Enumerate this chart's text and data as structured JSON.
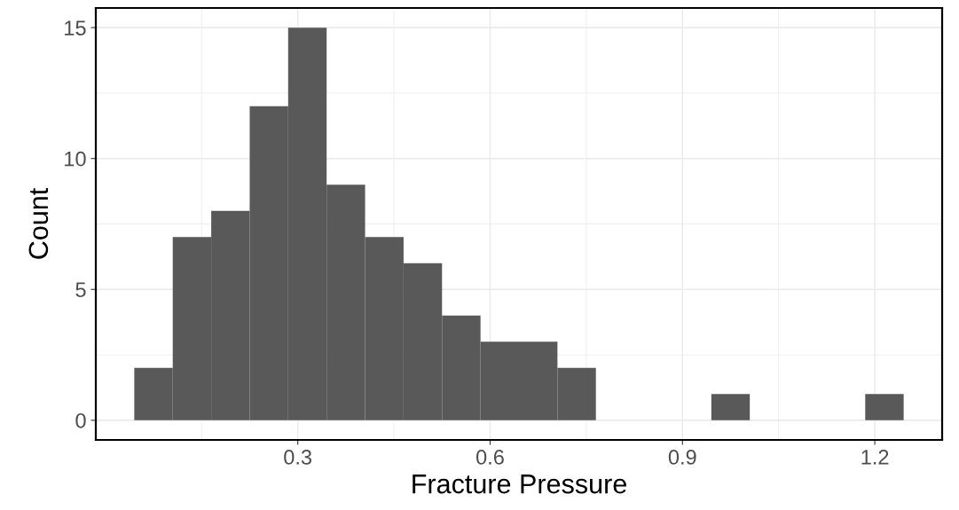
{
  "chart_data": {
    "type": "histogram",
    "xlabel": "Fracture Pressure",
    "ylabel": "Count",
    "bins": [
      0.045,
      0.105,
      0.165,
      0.225,
      0.285,
      0.345,
      0.405,
      0.465,
      0.525,
      0.585,
      0.645,
      0.705,
      0.765,
      0.825,
      0.885,
      0.945,
      1.005,
      1.065,
      1.125,
      1.185,
      1.245
    ],
    "values": [
      2,
      7,
      8,
      12,
      15,
      9,
      7,
      6,
      4,
      3,
      3,
      2,
      0,
      0,
      0,
      1,
      0,
      0,
      0,
      1
    ],
    "color": "#595959",
    "xlim": [
      -0.015,
      1.305
    ],
    "xticks": [
      {
        "value": 0.3,
        "label": "0.3"
      },
      {
        "value": 0.6,
        "label": "0.6"
      },
      {
        "value": 0.9,
        "label": "0.9"
      },
      {
        "value": 1.2,
        "label": "1.2"
      }
    ],
    "ylim": [
      -0.75,
      15.75
    ],
    "yticks": [
      0,
      5,
      10,
      15
    ],
    "grid": true
  }
}
